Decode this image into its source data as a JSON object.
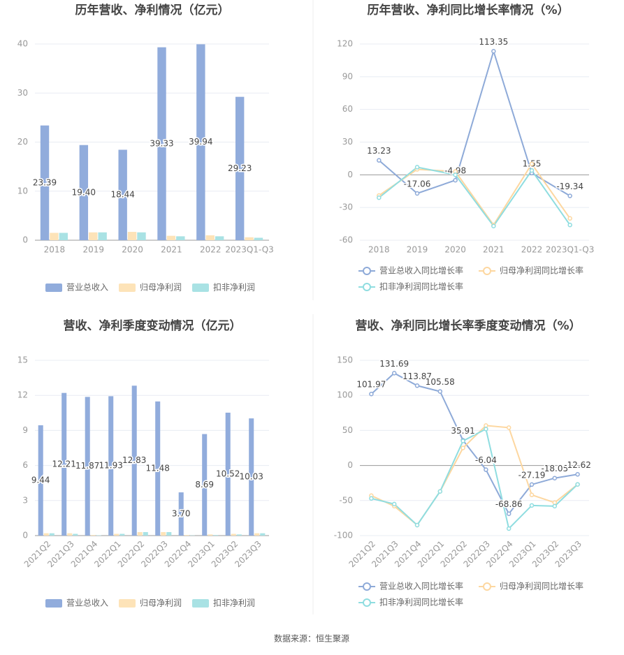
{
  "chart_data": [
    {
      "type": "bar",
      "title": "历年营收、净利情况（亿元）",
      "categories": [
        "2018",
        "2019",
        "2020",
        "2021",
        "2022",
        "2023Q1-Q3"
      ],
      "series": [
        {
          "name": "营业总收入",
          "color": "#91acdc",
          "values": [
            23.39,
            19.4,
            18.44,
            39.33,
            39.94,
            29.23
          ],
          "value_labels": [
            "23.39",
            "19.40",
            "18.44",
            "39.33",
            "39.94",
            "29.23"
          ]
        },
        {
          "name": "归母净利润",
          "color": "#fde3b8",
          "values": [
            1.5,
            1.6,
            1.7,
            0.9,
            1.0,
            0.6
          ]
        },
        {
          "name": "扣非净利润",
          "color": "#a9e2e4",
          "values": [
            1.5,
            1.6,
            1.6,
            0.8,
            0.8,
            0.5
          ]
        }
      ],
      "ylim": [
        0,
        40
      ],
      "yticks": [
        0,
        10,
        20,
        30,
        40
      ],
      "grid": true
    },
    {
      "type": "line",
      "title": "历年营收、净利同比增长率情况（%）",
      "categories": [
        "2018",
        "2019",
        "2020",
        "2021",
        "2022",
        "2023Q1-Q3"
      ],
      "series": [
        {
          "name": "营业总收入同比增长率",
          "color": "#8eaad8",
          "values": [
            13.23,
            -17.06,
            -4.98,
            113.35,
            1.55,
            -19.34
          ],
          "labels": true
        },
        {
          "name": "归母净利润同比增长率",
          "color": "#fdd7a0",
          "values": [
            -19,
            5,
            3,
            -46,
            10,
            -40
          ]
        },
        {
          "name": "扣非净利润同比增长率",
          "color": "#8fdde0",
          "values": [
            -21,
            7,
            0,
            -47,
            4,
            -46
          ]
        }
      ],
      "ylim": [
        -60,
        120
      ],
      "yticks": [
        -60,
        -30,
        0,
        30,
        60,
        90,
        120
      ],
      "grid": true
    },
    {
      "type": "bar",
      "title": "营收、净利季度变动情况（亿元）",
      "categories": [
        "2021Q2",
        "2021Q3",
        "2021Q4",
        "2022Q1",
        "2022Q2",
        "2022Q3",
        "2022Q4",
        "2023Q1",
        "2023Q2",
        "2023Q3"
      ],
      "series": [
        {
          "name": "营业总收入",
          "color": "#91acdc",
          "values": [
            9.44,
            12.21,
            11.87,
            11.93,
            12.83,
            11.48,
            3.7,
            8.69,
            10.52,
            10.03
          ],
          "value_labels": [
            "9.44",
            "12.21",
            "11.87",
            "11.93",
            "12.83",
            "11.48",
            "3.70",
            "8.69",
            "10.52",
            "10.03"
          ]
        },
        {
          "name": "归母净利润",
          "color": "#fde3b8",
          "values": [
            0.2,
            0.2,
            0.05,
            0.15,
            0.3,
            0.3,
            0.05,
            0.1,
            0.15,
            0.2
          ]
        },
        {
          "name": "扣非净利润",
          "color": "#a9e2e4",
          "values": [
            0.2,
            0.15,
            0.03,
            0.15,
            0.3,
            0.3,
            0.02,
            0.05,
            0.1,
            0.2
          ]
        }
      ],
      "ylim": [
        0,
        15
      ],
      "yticks": [
        0,
        3,
        6,
        9,
        12,
        15
      ],
      "grid": true
    },
    {
      "type": "line",
      "title": "营收、净利同比增长率季度变动情况（%）",
      "categories": [
        "2021Q2",
        "2021Q3",
        "2021Q4",
        "2022Q1",
        "2022Q2",
        "2022Q3",
        "2022Q4",
        "2023Q1",
        "2023Q2",
        "2023Q3"
      ],
      "series": [
        {
          "name": "营业总收入同比增长率",
          "color": "#8eaad8",
          "values": [
            101.97,
            131.69,
            113.87,
            105.58,
            35.91,
            -6.04,
            -68.86,
            -27.19,
            -18.05,
            -12.62
          ],
          "labels": true
        },
        {
          "name": "归母净利润同比增长率",
          "color": "#fdd7a0",
          "values": [
            -43,
            -58,
            -85,
            -37,
            25,
            57,
            54,
            -42,
            -53,
            -27
          ]
        },
        {
          "name": "扣非净利润同比增长率",
          "color": "#8fdde0",
          "values": [
            -47,
            -55,
            -85,
            -37,
            35,
            52,
            -90,
            -57,
            -58,
            -27
          ]
        }
      ],
      "ylim": [
        -100,
        150
      ],
      "yticks": [
        -100,
        -50,
        0,
        50,
        100,
        150
      ],
      "grid": true
    }
  ],
  "source": "数据来源：恒生聚源"
}
